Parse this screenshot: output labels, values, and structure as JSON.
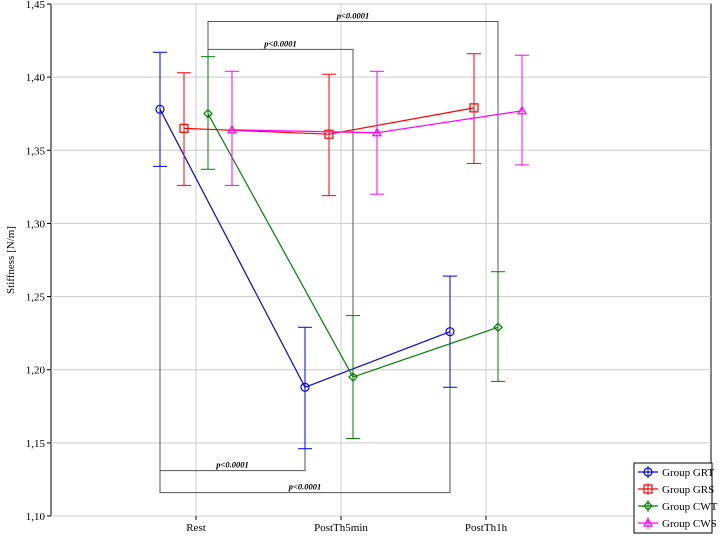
{
  "chart_data": {
    "type": "line",
    "ylabel": "Stiffness [N/m]",
    "ylim": [
      1.1,
      1.45
    ],
    "y_ticks": [
      "1,10",
      "1,15",
      "1,20",
      "1,25",
      "1,30",
      "1,35",
      "1,40",
      "1,45"
    ],
    "categories": [
      "Rest",
      "PostTh5min",
      "PostTh1h"
    ],
    "grid": true,
    "legend_position": "bottom-right",
    "series": [
      {
        "name": "Group GRT",
        "color": "#0000ff",
        "marker": "circle",
        "values": [
          1.378,
          1.188,
          1.226
        ],
        "lower": [
          1.339,
          1.146,
          1.188
        ],
        "upper": [
          1.417,
          1.229,
          1.264
        ]
      },
      {
        "name": "Group GRS",
        "color": "#ff0000",
        "marker": "square",
        "values": [
          1.365,
          1.361,
          1.379
        ],
        "lower": [
          1.326,
          1.319,
          1.341
        ],
        "upper": [
          1.403,
          1.402,
          1.416
        ]
      },
      {
        "name": "Group CWT",
        "color": "#008000",
        "marker": "diamond",
        "values": [
          1.375,
          1.195,
          1.229
        ],
        "lower": [
          1.337,
          1.153,
          1.192
        ],
        "upper": [
          1.414,
          1.237,
          1.267
        ]
      },
      {
        "name": "Group CWS",
        "color": "#ff00ff",
        "marker": "triangle",
        "values": [
          1.364,
          1.362,
          1.377
        ],
        "lower": [
          1.326,
          1.32,
          1.34
        ],
        "upper": [
          1.404,
          1.404,
          1.415
        ]
      }
    ],
    "annotations": [
      {
        "text": "p<0.0001",
        "series": 2,
        "from": 0,
        "to": 2,
        "side": "top",
        "level": 1.438
      },
      {
        "text": "p<0.0001",
        "series": 2,
        "from": 0,
        "to": 1,
        "side": "top",
        "level": 1.419
      },
      {
        "text": "p<0.0001",
        "series": 0,
        "from": 0,
        "to": 1,
        "side": "bottom",
        "level": 1.131
      },
      {
        "text": "p<0.0001",
        "series": 0,
        "from": 0,
        "to": 2,
        "side": "bottom",
        "level": 1.116
      }
    ]
  }
}
